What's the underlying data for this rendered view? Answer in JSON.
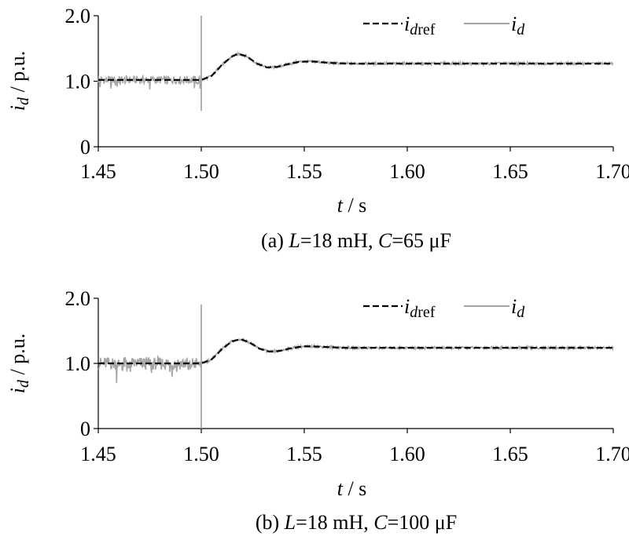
{
  "chart_data": [
    {
      "type": "line",
      "panel": "(a)",
      "caption": {
        "prefix": "(a)",
        "l_sym": "L",
        "l_val": "=18 mH, ",
        "c_sym": "C",
        "c_val": "=65 μF"
      },
      "xlabel": {
        "var": "t",
        "unit": " / s"
      },
      "ylabel": {
        "var": "i",
        "sub": "d",
        "unit": " / p.u."
      },
      "xlim": [
        1.45,
        1.7
      ],
      "ylim": [
        0,
        2.0
      ],
      "xticks": [
        "1.45",
        "1.50",
        "1.55",
        "1.60",
        "1.65",
        "1.70"
      ],
      "yticks": [
        "0",
        "1.0",
        "2.0"
      ],
      "legend": {
        "position": "top-right",
        "entries": [
          {
            "var": "i",
            "sub": "dref",
            "style": "dashed",
            "color": "#000000"
          },
          {
            "var": "i",
            "sub": "d",
            "style": "solid",
            "color": "#a6a6a6"
          }
        ]
      },
      "series": [
        {
          "name": "idref",
          "color": "#000000",
          "style": "dashed",
          "x": [
            1.45,
            1.5,
            1.505,
            1.51,
            1.515,
            1.518,
            1.522,
            1.527,
            1.532,
            1.537,
            1.542,
            1.548,
            1.555,
            1.562,
            1.57,
            1.6,
            1.65,
            1.7
          ],
          "y": [
            1.02,
            1.02,
            1.08,
            1.25,
            1.38,
            1.42,
            1.38,
            1.27,
            1.21,
            1.22,
            1.26,
            1.3,
            1.3,
            1.28,
            1.27,
            1.27,
            1.27,
            1.27
          ]
        },
        {
          "name": "id",
          "color": "#a6a6a6",
          "style": "solid",
          "x": [
            1.45,
            1.5,
            1.505,
            1.51,
            1.515,
            1.518,
            1.522,
            1.527,
            1.532,
            1.537,
            1.542,
            1.548,
            1.555,
            1.562,
            1.57,
            1.6,
            1.65,
            1.7
          ],
          "y": [
            1.02,
            1.02,
            1.08,
            1.25,
            1.38,
            1.42,
            1.38,
            1.27,
            1.21,
            1.22,
            1.26,
            1.3,
            1.3,
            1.28,
            1.27,
            1.27,
            1.27,
            1.27
          ],
          "noise_before": 0.06,
          "noise_after": 0.02,
          "spike": {
            "x": 1.5,
            "max": 2.0,
            "min": 0.55
          }
        }
      ]
    },
    {
      "type": "line",
      "panel": "(b)",
      "caption": {
        "prefix": "(b)",
        "l_sym": "L",
        "l_val": "=18 mH, ",
        "c_sym": "C",
        "c_val": "=100 μF"
      },
      "xlabel": {
        "var": "t",
        "unit": " / s"
      },
      "ylabel": {
        "var": "i",
        "sub": "d",
        "unit": " / p.u."
      },
      "xlim": [
        1.45,
        1.7
      ],
      "ylim": [
        0,
        2.0
      ],
      "xticks": [
        "1.45",
        "1.50",
        "1.55",
        "1.60",
        "1.65",
        "1.70"
      ],
      "yticks": [
        "0",
        "1.0",
        "2.0"
      ],
      "legend": {
        "position": "top-right",
        "entries": [
          {
            "var": "i",
            "sub": "dref",
            "style": "dashed",
            "color": "#000000"
          },
          {
            "var": "i",
            "sub": "d",
            "style": "solid",
            "color": "#a6a6a6"
          }
        ]
      },
      "series": [
        {
          "name": "idref",
          "color": "#000000",
          "style": "dashed",
          "x": [
            1.45,
            1.5,
            1.505,
            1.51,
            1.515,
            1.519,
            1.523,
            1.528,
            1.533,
            1.538,
            1.543,
            1.549,
            1.555,
            1.562,
            1.57,
            1.6,
            1.65,
            1.7
          ],
          "y": [
            1.0,
            1.0,
            1.06,
            1.22,
            1.34,
            1.37,
            1.33,
            1.23,
            1.18,
            1.19,
            1.23,
            1.26,
            1.26,
            1.25,
            1.24,
            1.24,
            1.24,
            1.24
          ]
        },
        {
          "name": "id",
          "color": "#a6a6a6",
          "style": "solid",
          "x": [
            1.45,
            1.5,
            1.505,
            1.51,
            1.515,
            1.519,
            1.523,
            1.528,
            1.533,
            1.538,
            1.543,
            1.549,
            1.555,
            1.562,
            1.57,
            1.6,
            1.65,
            1.7
          ],
          "y": [
            1.0,
            1.0,
            1.06,
            1.22,
            1.34,
            1.37,
            1.33,
            1.23,
            1.18,
            1.19,
            1.23,
            1.26,
            1.26,
            1.25,
            1.24,
            1.24,
            1.24,
            1.24
          ],
          "noise_before": 0.1,
          "noise_after": 0.02,
          "spike": {
            "x": 1.5,
            "max": 1.9,
            "min": 0.0
          }
        }
      ]
    }
  ]
}
